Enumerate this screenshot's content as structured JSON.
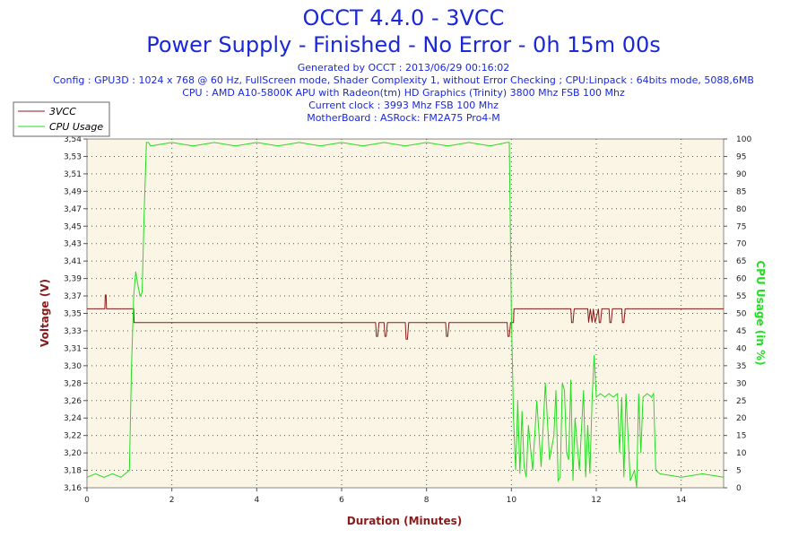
{
  "header": {
    "title": "OCCT 4.4.0 - 3VCC",
    "subtitle": "Power Supply - Finished - No Error - 0h 15m 00s",
    "info_lines": [
      "Generated by OCCT : 2013/06/29 00:16:02",
      "Config : GPU3D : 1024 x 768 @ 60 Hz, FullScreen mode, Shader Complexity 1, without Error Checking ; CPU:Linpack : 64bits mode, 5088,6MB",
      "CPU : AMD A10-5800K APU with Radeon(tm) HD Graphics (Trinity) 3800 Mhz FSB 100 Mhz",
      "Current clock : 3993 Mhz FSB 100 Mhz",
      "MotherBoard : ASRock: FM2A75 Pro4-M"
    ]
  },
  "chart_data": {
    "type": "line",
    "xlabel": "Duration (Minutes)",
    "ylabel_left": "Voltage (V)",
    "ylabel_right": "CPU Usage (in %)",
    "xlim": [
      0,
      15
    ],
    "x_ticks": [
      "0",
      "2",
      "4",
      "6",
      "8",
      "10",
      "12",
      "14"
    ],
    "ylim_left": [
      3.16,
      3.54
    ],
    "y_ticks_left": [
      "3,16",
      "3,18",
      "3,20",
      "3,22",
      "3,24",
      "3,26",
      "3,28",
      "3,30",
      "3,31",
      "3,33",
      "3,35",
      "3,37",
      "3,39",
      "3,41",
      "3,43",
      "3,45",
      "3,47",
      "3,49",
      "3,51",
      "3,53",
      "3,54"
    ],
    "ylim_right": [
      0,
      100
    ],
    "y_ticks_right": [
      "0",
      "5",
      "10",
      "15",
      "20",
      "25",
      "30",
      "35",
      "40",
      "45",
      "50",
      "55",
      "60",
      "65",
      "70",
      "75",
      "80",
      "85",
      "90",
      "95",
      "100"
    ],
    "grid": true,
    "legend_position": "top-left",
    "series": [
      {
        "name": "3VCC",
        "axis": "left",
        "color": "#8b1a1a",
        "x": [
          0,
          0.42,
          0.43,
          0.45,
          0.46,
          1.1,
          1.11,
          6.8,
          6.82,
          6.85,
          6.88,
          7.0,
          7.02,
          7.05,
          7.08,
          7.5,
          7.52,
          7.55,
          7.58,
          8.45,
          8.47,
          8.5,
          8.53,
          9.9,
          9.92,
          9.95,
          9.98,
          10.05,
          10.06,
          11.4,
          11.42,
          11.45,
          11.48,
          11.8,
          11.82,
          11.86,
          11.9,
          11.93,
          11.97,
          12.05,
          12.07,
          12.1,
          12.13,
          12.3,
          12.32,
          12.35,
          12.38,
          12.6,
          12.62,
          12.65,
          12.68,
          15
        ],
        "values": [
          3.355,
          3.355,
          3.37,
          3.37,
          3.355,
          3.355,
          3.34,
          3.34,
          3.325,
          3.325,
          3.34,
          3.34,
          3.325,
          3.325,
          3.34,
          3.34,
          3.322,
          3.322,
          3.34,
          3.34,
          3.325,
          3.325,
          3.34,
          3.34,
          3.325,
          3.325,
          3.34,
          3.34,
          3.355,
          3.355,
          3.34,
          3.34,
          3.355,
          3.355,
          3.34,
          3.355,
          3.34,
          3.355,
          3.34,
          3.355,
          3.34,
          3.34,
          3.355,
          3.355,
          3.34,
          3.34,
          3.355,
          3.355,
          3.34,
          3.34,
          3.355,
          3.355
        ]
      },
      {
        "name": "CPU Usage",
        "axis": "right",
        "color": "#22dd22",
        "x": [
          0,
          0.2,
          0.4,
          0.6,
          0.8,
          1.0,
          1.05,
          1.1,
          1.15,
          1.2,
          1.25,
          1.3,
          1.35,
          1.4,
          1.45,
          1.5,
          2,
          2.5,
          3,
          3.5,
          4,
          4.5,
          5,
          5.5,
          6,
          6.5,
          7,
          7.5,
          8,
          8.5,
          9,
          9.5,
          9.9,
          9.95,
          10.0,
          10.05,
          10.1,
          10.15,
          10.2,
          10.25,
          10.3,
          10.35,
          10.4,
          10.5,
          10.6,
          10.7,
          10.8,
          10.9,
          11.0,
          11.05,
          11.1,
          11.15,
          11.2,
          11.25,
          11.3,
          11.35,
          11.4,
          11.45,
          11.5,
          11.6,
          11.7,
          11.75,
          11.8,
          11.85,
          11.9,
          11.95,
          12.0,
          12.1,
          12.2,
          12.3,
          12.4,
          12.5,
          12.55,
          12.6,
          12.65,
          12.7,
          12.8,
          12.9,
          12.95,
          13.0,
          13.05,
          13.1,
          13.2,
          13.3,
          13.35,
          13.4,
          13.5,
          14,
          14.5,
          15
        ],
        "values": [
          3,
          4,
          3,
          4,
          3,
          5,
          35,
          55,
          62,
          58,
          55,
          56,
          80,
          99,
          99,
          98,
          99,
          98,
          99,
          98,
          99,
          98,
          99,
          98,
          99,
          98,
          99,
          98,
          99,
          98,
          99,
          98,
          99,
          99,
          50,
          20,
          5,
          25,
          4,
          22,
          6,
          3,
          18,
          5,
          25,
          6,
          30,
          8,
          15,
          28,
          2,
          3,
          30,
          28,
          10,
          8,
          31,
          2,
          20,
          5,
          28,
          3,
          18,
          4,
          25,
          38,
          26,
          27,
          26,
          27,
          26,
          27,
          10,
          26,
          3,
          27,
          2,
          5,
          0,
          27,
          10,
          26,
          27,
          26,
          27,
          5,
          4,
          3,
          4,
          3
        ]
      }
    ]
  }
}
